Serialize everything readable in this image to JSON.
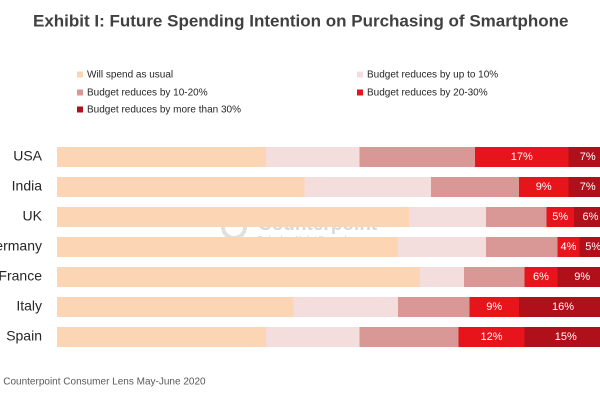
{
  "chart_data": {
    "type": "bar",
    "orientation": "horizontal",
    "stacked": true,
    "title": "Exhibit I: Future Spending Intention on Purchasing of Smartphone",
    "source": "Source: Counterpoint Consumer Lens May-June 2020",
    "watermark": "Counterpoint",
    "watermark_subtitle": "Technology Market Research",
    "categories": [
      "USA",
      "India",
      "UK",
      "Germany",
      "France",
      "Italy",
      "Spain"
    ],
    "xlim": [
      0,
      100
    ],
    "series": [
      {
        "name": "Will spend as usual",
        "color": "#fcd5b5",
        "values": [
          38,
          45,
          64,
          62,
          66,
          43,
          38
        ]
      },
      {
        "name": "Budget reduces by up to 10%",
        "color": "#f4dedd",
        "values": [
          17,
          23,
          14,
          16,
          8,
          19,
          17
        ]
      },
      {
        "name": "Budget reduces by  10-20%",
        "color": "#d99795",
        "values": [
          21,
          16,
          11,
          13,
          11,
          13,
          18
        ]
      },
      {
        "name": "Budget reduces by  20-30%",
        "color": "#e8141c",
        "values": [
          17,
          9,
          5,
          4,
          6,
          9,
          12
        ],
        "value_labels": [
          "17%",
          "9%",
          "5%",
          "4%",
          "6%",
          "9%",
          "12%"
        ]
      },
      {
        "name": "Budget reduces by more than 30%",
        "color": "#b0101a",
        "values": [
          7,
          7,
          6,
          5,
          9,
          16,
          15
        ],
        "value_labels": [
          "7%",
          "7%",
          "6%",
          "5%",
          "9%",
          "16%",
          "15%"
        ]
      }
    ]
  }
}
